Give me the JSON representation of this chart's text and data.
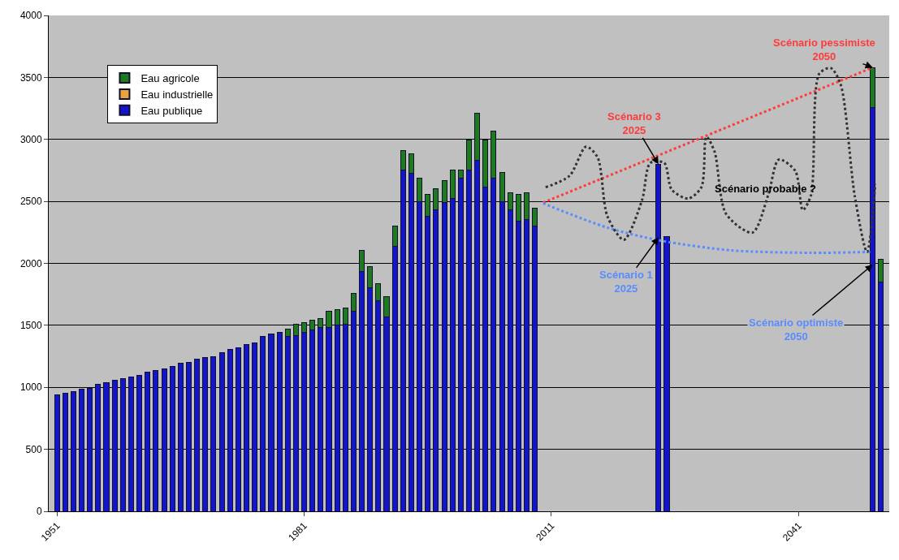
{
  "chart_data": {
    "type": "bar",
    "stacked": true,
    "x": [
      1951,
      1952,
      1953,
      1954,
      1955,
      1956,
      1957,
      1958,
      1959,
      1960,
      1961,
      1962,
      1963,
      1964,
      1965,
      1966,
      1967,
      1968,
      1969,
      1970,
      1971,
      1972,
      1973,
      1974,
      1975,
      1976,
      1977,
      1978,
      1979,
      1980,
      1981,
      1982,
      1983,
      1984,
      1985,
      1986,
      1987,
      1988,
      1989,
      1990,
      1991,
      1992,
      1993,
      1994,
      1995,
      1996,
      1997,
      1998,
      1999,
      2000,
      2001,
      2002,
      2003,
      2004,
      2005,
      2006,
      2007,
      2008,
      2009,
      2024,
      2025,
      2050,
      2051
    ],
    "series": [
      {
        "name": "Eau publique",
        "color": "#1414c8",
        "values": [
          940,
          954,
          967,
          988,
          994,
          1023,
          1037,
          1055,
          1069,
          1082,
          1095,
          1122,
          1135,
          1149,
          1170,
          1194,
          1202,
          1226,
          1242,
          1250,
          1282,
          1304,
          1322,
          1344,
          1357,
          1413,
          1429,
          1443,
          1408,
          1416,
          1443,
          1461,
          1483,
          1483,
          1502,
          1510,
          1616,
          1937,
          1803,
          1697,
          1568,
          2137,
          2752,
          2725,
          2498,
          2378,
          2431,
          2493,
          2525,
          2690,
          2752,
          2832,
          2618,
          2685,
          2498,
          2431,
          2338,
          2351,
          2298,
          2800,
          2216,
          3260,
          1850
        ]
      },
      {
        "name": "Eau industrielle",
        "color": "#e8a33a",
        "values": [
          null,
          null,
          null,
          null,
          null,
          null,
          null,
          null,
          null,
          null,
          null,
          null,
          null,
          null,
          null,
          null,
          null,
          null,
          null,
          null,
          null,
          null,
          null,
          null,
          null,
          null,
          null,
          null,
          null,
          null,
          null,
          null,
          null,
          null,
          null,
          null,
          null,
          null,
          null,
          null,
          null,
          null,
          null,
          null,
          null,
          null,
          null,
          null,
          null,
          null,
          null,
          null,
          null,
          null,
          null,
          null,
          null,
          null,
          null,
          null,
          null,
          null,
          null
        ]
      },
      {
        "name": "Eau agricole",
        "color": "#1e7a1e",
        "values": [
          null,
          null,
          null,
          null,
          null,
          null,
          null,
          null,
          null,
          null,
          null,
          null,
          null,
          null,
          null,
          null,
          null,
          null,
          null,
          null,
          null,
          null,
          null,
          null,
          null,
          null,
          null,
          null,
          61,
          93,
          80,
          83,
          75,
          128,
          122,
          128,
          145,
          166,
          169,
          141,
          166,
          161,
          160,
          161,
          192,
          179,
          174,
          176,
          227,
          62,
          240,
          379,
          374,
          379,
          232,
          139,
          219,
          219,
          147,
          null,
          null,
          320,
          180
        ]
      },
      {
        "type": "line",
        "color": "#ff3b3b",
        "line_style": "dotted",
        "x": [
          2010,
          2050
        ],
        "values": [
          2490,
          3580
        ]
      },
      {
        "type": "line",
        "color": "#5a8cff",
        "line_style": "dotted",
        "x": [
          2010,
          2017.8,
          2024.3,
          2032.8,
          2042.5,
          2049.7
        ],
        "values": [
          2484,
          2288,
          2183,
          2105,
          2085,
          2092
        ]
      },
      {
        "type": "line",
        "color": "#333333",
        "line_style": "dotted",
        "x": [
          2010.3,
          2013.2,
          2015.2,
          2016.6,
          2017.8,
          2019.8,
          2022.0,
          2023.0,
          2024.7,
          2025.6,
          2027.6,
          2029.2,
          2029.8,
          2030.8,
          2032.2,
          2035.4,
          2037.3,
          2038.6,
          2040.6,
          2041.5,
          2042.5,
          2043.5,
          2044.9,
          2046.1,
          2047.8,
          2049.3,
          2050.3
        ],
        "values": [
          2614,
          2706,
          2941,
          2856,
          2379,
          2190,
          2510,
          2810,
          2810,
          2595,
          2523,
          2614,
          3020,
          2902,
          2399,
          2248,
          2549,
          2837,
          2745,
          2431,
          2549,
          3529,
          3575,
          3444,
          2549,
          2092,
          2641
        ]
      }
    ],
    "xlim": [
      1950,
      2052
    ],
    "xticks": [
      1951,
      1981,
      2011,
      2041
    ],
    "ylim": [
      0,
      4000
    ],
    "yticks": [
      0,
      500,
      1000,
      1500,
      2000,
      2500,
      3000,
      3500,
      4000
    ],
    "grid": "y",
    "legend": "top left",
    "annotations": [
      {
        "text": "Scénario pessimiste\n2050",
        "x": 2050,
        "y": 3580
      },
      {
        "text": "Scénario 3\n2025",
        "x": 2024,
        "y": 2800
      },
      {
        "text": "Scénario 1\n2025",
        "x": 2024,
        "y": 2210
      },
      {
        "text": "Scénario optimiste\n2050",
        "x": 2050,
        "y": 1990
      },
      {
        "text": "Scénario probable ?",
        "x": 2037,
        "y": 2600
      }
    ]
  }
}
